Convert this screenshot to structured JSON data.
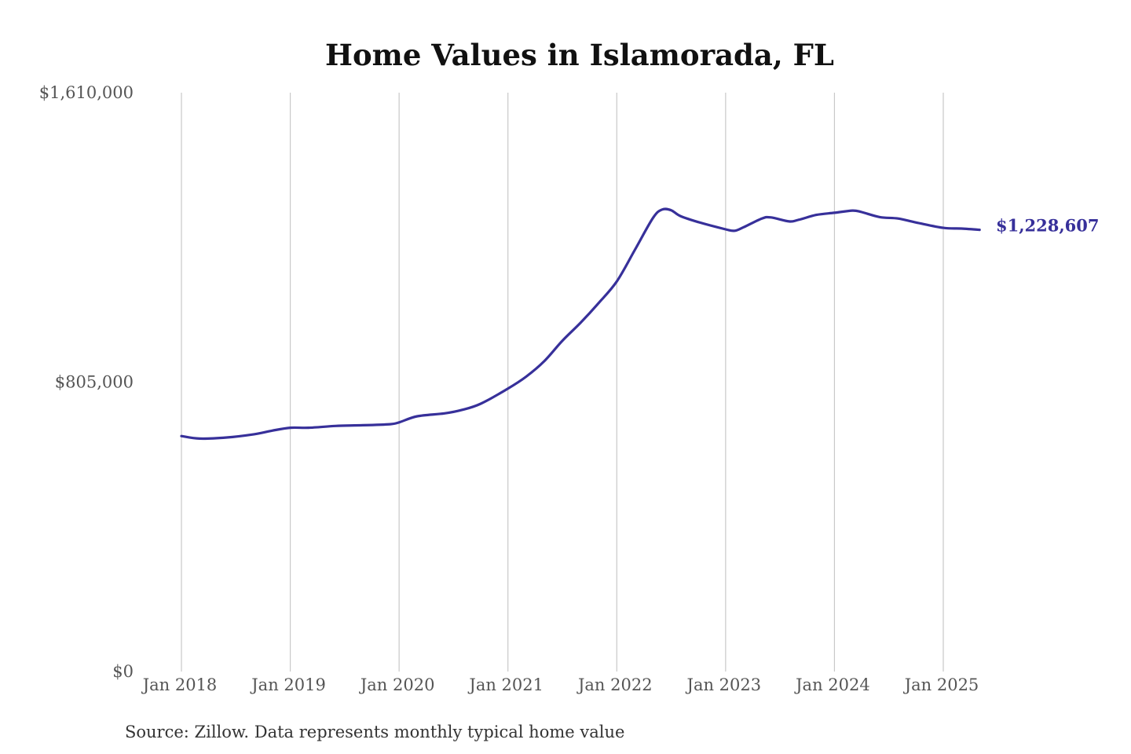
{
  "colors": {
    "line": "#37309a",
    "grid": "#c8c8c8",
    "text": "#555555",
    "title": "#111111"
  },
  "chart_data": {
    "type": "line",
    "title": "Home Values in Islamorada, FL",
    "subtitle": "",
    "xlabel": "",
    "ylabel": "",
    "source": "Source: Zillow. Data represents monthly typical home value",
    "grid": "vertical",
    "ylim": [
      0,
      1610000
    ],
    "y_ticks": [
      {
        "value": 0,
        "label": "$0"
      },
      {
        "value": 805000,
        "label": "$805,000"
      },
      {
        "value": 1610000,
        "label": "$1,610,000"
      }
    ],
    "x_ticks": [
      {
        "value": "2018-01",
        "label": "Jan 2018"
      },
      {
        "value": "2019-01",
        "label": "Jan 2019"
      },
      {
        "value": "2020-01",
        "label": "Jan 2020"
      },
      {
        "value": "2021-01",
        "label": "Jan 2021"
      },
      {
        "value": "2022-01",
        "label": "Jan 2022"
      },
      {
        "value": "2023-01",
        "label": "Jan 2023"
      },
      {
        "value": "2024-01",
        "label": "Jan 2024"
      },
      {
        "value": "2025-01",
        "label": "Jan 2025"
      }
    ],
    "end_label": "$1,228,607",
    "series": [
      {
        "x": [
          "2018-01",
          "2018-03",
          "2018-06",
          "2018-09",
          "2018-11",
          "2019-01",
          "2019-03",
          "2019-06",
          "2019-09",
          "2019-12",
          "2020-01",
          "2020-03",
          "2020-06",
          "2020-08",
          "2020-10",
          "2021-01",
          "2021-03",
          "2021-05",
          "2021-07",
          "2021-09",
          "2021-11",
          "2022-01",
          "2022-03",
          "2022-05",
          "2022-06",
          "2022-07",
          "2022-08",
          "2022-10",
          "2023-01",
          "2023-02",
          "2023-03",
          "2023-05",
          "2023-06",
          "2023-08",
          "2023-09",
          "2023-11",
          "2024-01",
          "2024-03",
          "2024-04",
          "2024-06",
          "2024-08",
          "2024-10",
          "2025-01",
          "2025-03",
          "2025-05"
        ],
        "values": [
          655000,
          648000,
          651000,
          660000,
          670000,
          678000,
          678000,
          683000,
          685000,
          688000,
          693000,
          710000,
          718000,
          728000,
          745000,
          787000,
          820000,
          863000,
          920000,
          970000,
          1025000,
          1085000,
          1173000,
          1262000,
          1285000,
          1283000,
          1267000,
          1250000,
          1230000,
          1226000,
          1236000,
          1260000,
          1263000,
          1252000,
          1256000,
          1270000,
          1276000,
          1282000,
          1278000,
          1264000,
          1260000,
          1249000,
          1234000,
          1232000,
          1228607
        ]
      }
    ]
  }
}
